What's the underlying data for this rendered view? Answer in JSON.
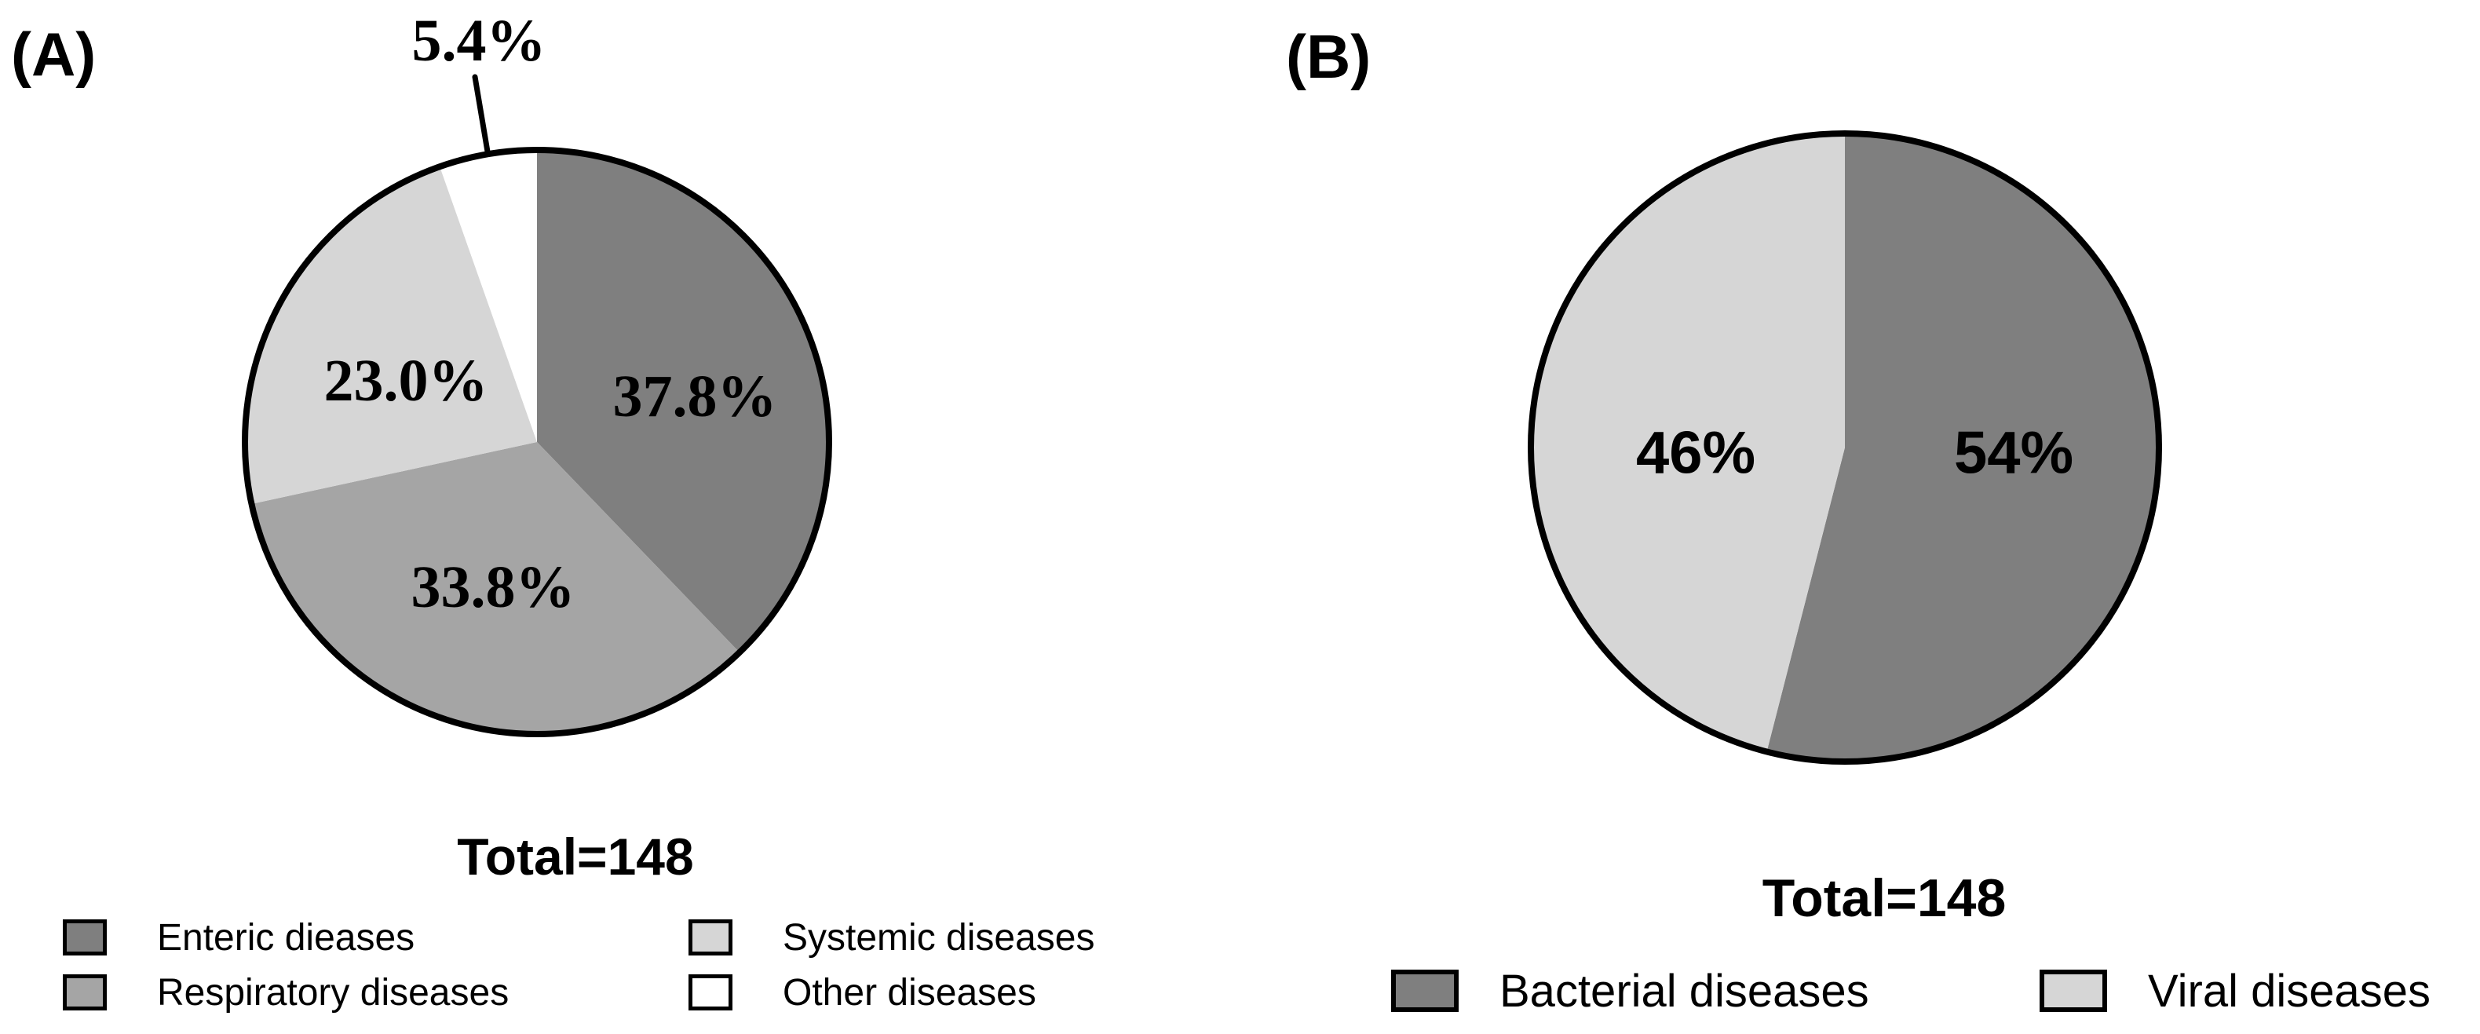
{
  "figure": {
    "background": "#ffffff",
    "outline_color": "#000000",
    "text_color": "#000000"
  },
  "chart_data": [
    {
      "type": "pie",
      "panel": "(A)",
      "total_label": "Total=148",
      "total": 148,
      "start_angle_deg": 0,
      "direction": "clockwise",
      "slices": [
        {
          "label": "Enteric dieases",
          "pct": 37.8,
          "display": "37.8%",
          "color": "#7f7f7f",
          "label_style": "inside"
        },
        {
          "label": "Respiratory diseases",
          "pct": 33.8,
          "display": "33.8%",
          "color": "#a5a5a5",
          "label_style": "inside"
        },
        {
          "label": "Systemic diseases",
          "pct": 23.0,
          "display": "23.0%",
          "color": "#d6d6d6",
          "label_style": "inside"
        },
        {
          "label": "Other diseases",
          "pct": 5.4,
          "display": "5.4%",
          "color": "#ffffff",
          "label_style": "callout-top"
        }
      ],
      "legend_position": "below",
      "legend_columns": 2
    },
    {
      "type": "pie",
      "panel": "(B)",
      "total_label": "Total=148",
      "total": 148,
      "start_angle_deg": 0,
      "direction": "clockwise",
      "slices": [
        {
          "label": "Bacterial diseases",
          "pct": 54,
          "display": "54%",
          "color": "#7f7f7f",
          "label_style": "inside"
        },
        {
          "label": "Viral diseases",
          "pct": 46,
          "display": "46%",
          "color": "#d6d6d6",
          "label_style": "inside"
        }
      ],
      "legend_position": "below",
      "legend_columns": 2
    }
  ]
}
